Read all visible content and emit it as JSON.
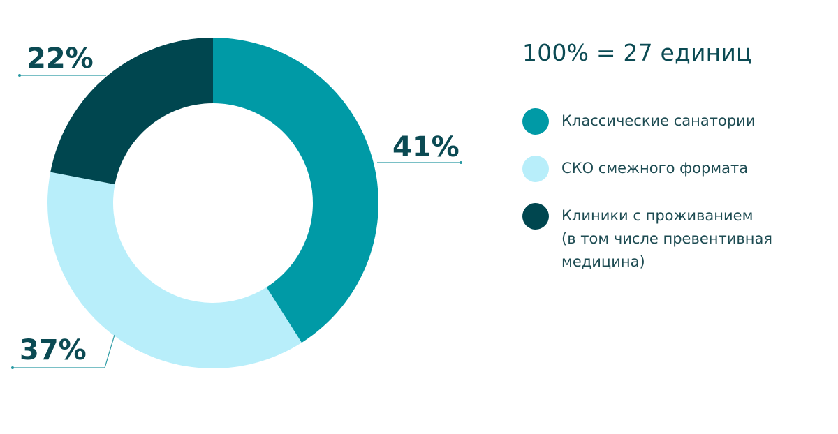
{
  "total_label": "100% = 27 единиц",
  "chart_data": {
    "type": "pie",
    "total": "100% = 27 единиц",
    "slices": [
      {
        "label": "Классические санатории",
        "value": 41,
        "value_label": "41%",
        "color": "#009aa6"
      },
      {
        "label": "СКО смежного формата",
        "value": 37,
        "value_label": "37%",
        "color": "#b8eefa"
      },
      {
        "label": "Клиники с проживанием\n(в том числе превентивная\nмедицина)",
        "value": 22,
        "value_label": "22%",
        "color": "#00464f"
      }
    ],
    "legend_position": "right"
  }
}
